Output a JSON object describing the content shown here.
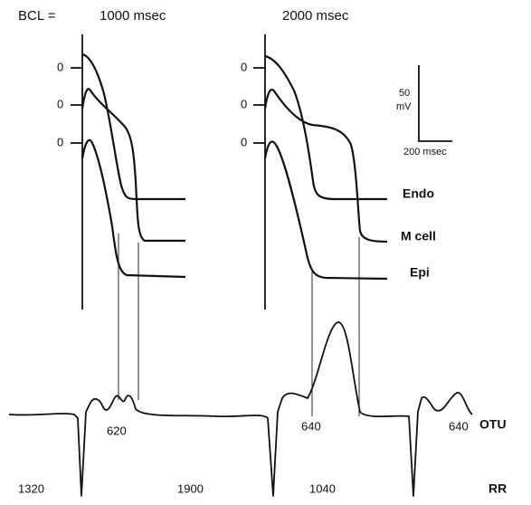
{
  "header": {
    "bcl_label": "BCL =",
    "panels": [
      "1000 msec",
      "2000 msec"
    ]
  },
  "zero_labels": [
    "0",
    "0",
    "0",
    "0",
    "0",
    "0"
  ],
  "scale_bar": {
    "amplitude": "50",
    "unit": "mV",
    "time": "200 msec"
  },
  "traces": [
    "Endo",
    "M cell",
    "Epi"
  ],
  "ecg": {
    "label": "OTU",
    "qt_values": [
      "620",
      "640",
      "640"
    ]
  },
  "rr": {
    "label": "RR",
    "values": [
      "1320",
      "1900",
      "1040"
    ]
  }
}
